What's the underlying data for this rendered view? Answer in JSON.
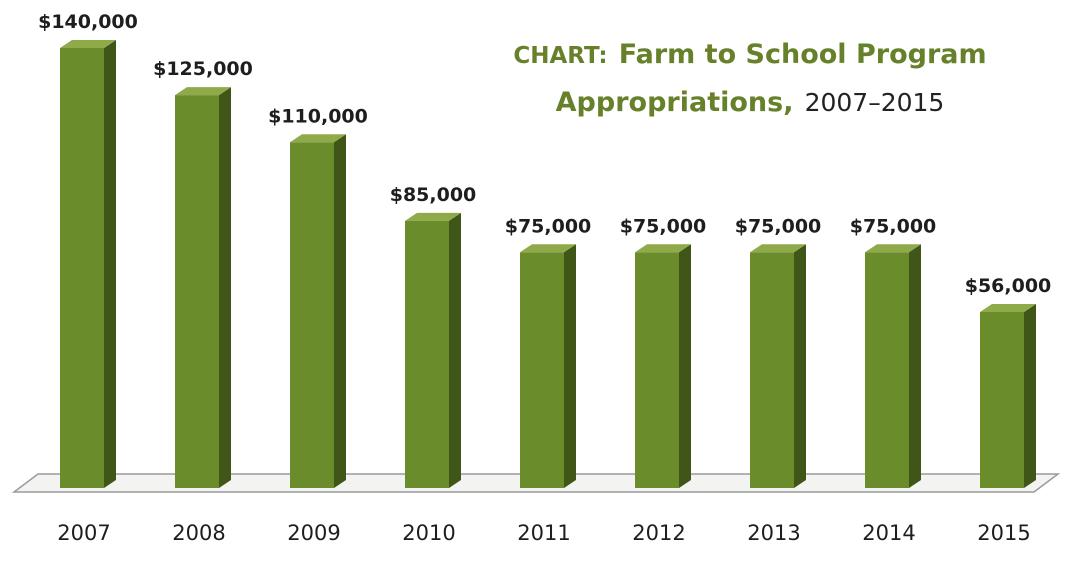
{
  "title": {
    "prefix": "CHART:",
    "main_line1": "Farm to School Program",
    "main_line2": "Appropriations,",
    "range": "2007–2015"
  },
  "colors": {
    "bar_front": "#6b8c2a",
    "bar_side": "#3f5618",
    "bar_top": "#8faa48",
    "title_green": "#66812a",
    "floor_fill": "#f3f4f1",
    "floor_stroke": "#9a9a9a"
  },
  "chart_data": {
    "type": "bar",
    "style": "3d-column",
    "title": "CHART: Farm to School Program Appropriations, 2007–2015",
    "categories": [
      "2007",
      "2008",
      "2009",
      "2010",
      "2011",
      "2012",
      "2013",
      "2014",
      "2015"
    ],
    "values": [
      140000,
      125000,
      110000,
      85000,
      75000,
      75000,
      75000,
      75000,
      56000
    ],
    "data_labels": [
      "$140,000",
      "$125,000",
      "$110,000",
      "$85,000",
      "$75,000",
      "$75,000",
      "$75,000",
      "$75,000",
      "$56,000"
    ],
    "xlabel": "",
    "ylabel": "",
    "ylim": [
      0,
      140000
    ],
    "grid": false,
    "legend": "none"
  }
}
